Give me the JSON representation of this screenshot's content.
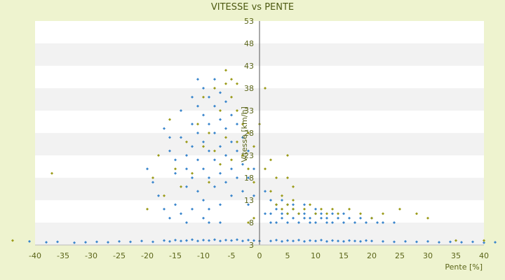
{
  "chart_data": {
    "type": "scatter",
    "title": "VITESSE vs PENTE",
    "xlabel": "Pente [%]",
    "ylabel": "Vitesse [km/h]",
    "xlim": [
      -40,
      40
    ],
    "ylim": [
      3,
      53
    ],
    "x_ticks": [
      "-40",
      "-35",
      "-30",
      "-25",
      "-20",
      "-15",
      "-10",
      "-5",
      "0",
      "5",
      "10",
      "15",
      "20",
      "25",
      "30",
      "35",
      "40"
    ],
    "y_ticks": [
      "3",
      "8",
      "13",
      "18",
      "23",
      "28",
      "33",
      "38",
      "43",
      "48",
      "53"
    ],
    "grid": "horizontal alternating bands",
    "legend": "none",
    "colors": {
      "background": "#eef3cf",
      "band_light": "#ffffff",
      "band_dark": "#f2f2f2",
      "series_blue": "#3a86cc",
      "series_olive": "#9b9b1a",
      "axis": "#555555"
    },
    "series": [
      {
        "color": "#3a86cc",
        "values": [
          [
            -41,
            3.8
          ],
          [
            -38,
            3.6
          ],
          [
            -36,
            3.7
          ],
          [
            -33,
            3.5
          ],
          [
            -31,
            3.6
          ],
          [
            -29,
            3.7
          ],
          [
            -27,
            3.6
          ],
          [
            -25,
            3.8
          ],
          [
            -23,
            3.7
          ],
          [
            -21,
            3.9
          ],
          [
            -19,
            3.7
          ],
          [
            -17,
            4.0
          ],
          [
            -16,
            3.8
          ],
          [
            -15,
            4.1
          ],
          [
            -14,
            3.9
          ],
          [
            -13,
            4.0
          ],
          [
            -12,
            4.2
          ],
          [
            -11,
            3.9
          ],
          [
            -10,
            4.1
          ],
          [
            -9,
            4.0
          ],
          [
            -8,
            4.2
          ],
          [
            -7,
            3.9
          ],
          [
            -6,
            4.1
          ],
          [
            -5,
            4.0
          ],
          [
            -4,
            4.2
          ],
          [
            -3,
            3.9
          ],
          [
            -2,
            4.1
          ],
          [
            -1,
            4.0
          ],
          [
            0,
            3.9
          ],
          [
            2,
            3.9
          ],
          [
            3,
            4.1
          ],
          [
            4,
            3.8
          ],
          [
            5,
            4.0
          ],
          [
            6,
            3.9
          ],
          [
            7,
            4.1
          ],
          [
            8,
            3.8
          ],
          [
            9,
            4.0
          ],
          [
            10,
            3.9
          ],
          [
            11,
            4.1
          ],
          [
            12,
            3.8
          ],
          [
            13,
            4.0
          ],
          [
            14,
            3.9
          ],
          [
            15,
            3.8
          ],
          [
            16,
            4.0
          ],
          [
            17,
            3.9
          ],
          [
            18,
            3.8
          ],
          [
            19,
            4.0
          ],
          [
            20,
            3.9
          ],
          [
            22,
            3.8
          ],
          [
            24,
            3.7
          ],
          [
            26,
            3.8
          ],
          [
            28,
            3.7
          ],
          [
            30,
            3.8
          ],
          [
            32,
            3.6
          ],
          [
            34,
            3.7
          ],
          [
            36,
            3.6
          ],
          [
            38,
            3.7
          ],
          [
            40,
            3.5
          ],
          [
            42,
            3.6
          ],
          [
            -17,
            29
          ],
          [
            -16,
            27
          ],
          [
            -16,
            24
          ],
          [
            -15,
            22
          ],
          [
            -15,
            19
          ],
          [
            -14,
            33
          ],
          [
            -14,
            27
          ],
          [
            -13,
            23
          ],
          [
            -13,
            20
          ],
          [
            -13,
            16
          ],
          [
            -12,
            36
          ],
          [
            -12,
            30
          ],
          [
            -12,
            25
          ],
          [
            -12,
            18
          ],
          [
            -11,
            40
          ],
          [
            -11,
            34
          ],
          [
            -11,
            28
          ],
          [
            -11,
            22
          ],
          [
            -11,
            15
          ],
          [
            -10,
            38
          ],
          [
            -10,
            32
          ],
          [
            -10,
            26
          ],
          [
            -10,
            20
          ],
          [
            -10,
            13
          ],
          [
            -9,
            36
          ],
          [
            -9,
            30
          ],
          [
            -9,
            24
          ],
          [
            -9,
            18
          ],
          [
            -9,
            11
          ],
          [
            -8,
            40
          ],
          [
            -8,
            34
          ],
          [
            -8,
            28
          ],
          [
            -8,
            22
          ],
          [
            -8,
            16
          ],
          [
            -7,
            37
          ],
          [
            -7,
            31
          ],
          [
            -7,
            25
          ],
          [
            -7,
            19
          ],
          [
            -7,
            12
          ],
          [
            -6,
            35
          ],
          [
            -6,
            29
          ],
          [
            -6,
            23
          ],
          [
            -6,
            17
          ],
          [
            -5,
            32
          ],
          [
            -5,
            26
          ],
          [
            -5,
            20
          ],
          [
            -5,
            14
          ],
          [
            -4,
            30
          ],
          [
            -4,
            24
          ],
          [
            -4,
            18
          ],
          [
            -3,
            27
          ],
          [
            -3,
            21
          ],
          [
            -3,
            15
          ],
          [
            -2,
            24
          ],
          [
            -2,
            18
          ],
          [
            -2,
            12
          ],
          [
            -1,
            20
          ],
          [
            -1,
            14
          ],
          [
            -20,
            20
          ],
          [
            -19,
            17
          ],
          [
            -18,
            14
          ],
          [
            -17,
            11
          ],
          [
            -16,
            9
          ],
          [
            -15,
            12
          ],
          [
            -14,
            10
          ],
          [
            -13,
            8
          ],
          [
            -12,
            11
          ],
          [
            -10,
            9
          ],
          [
            -9,
            8
          ],
          [
            -7,
            8
          ],
          [
            1,
            10
          ],
          [
            2,
            8
          ],
          [
            2,
            10
          ],
          [
            3,
            8
          ],
          [
            3,
            11
          ],
          [
            4,
            9
          ],
          [
            4,
            10
          ],
          [
            5,
            8
          ],
          [
            5,
            10
          ],
          [
            6,
            9
          ],
          [
            6,
            11
          ],
          [
            7,
            8
          ],
          [
            7,
            10
          ],
          [
            8,
            9
          ],
          [
            8,
            10
          ],
          [
            9,
            8
          ],
          [
            9,
            9
          ],
          [
            10,
            10
          ],
          [
            10,
            8
          ],
          [
            11,
            9
          ],
          [
            11,
            10
          ],
          [
            12,
            8
          ],
          [
            12,
            9
          ],
          [
            13,
            10
          ],
          [
            13,
            8
          ],
          [
            14,
            9
          ],
          [
            15,
            8
          ],
          [
            15,
            10
          ],
          [
            16,
            9
          ],
          [
            17,
            8
          ],
          [
            18,
            9
          ],
          [
            19,
            8
          ],
          [
            20,
            9
          ],
          [
            21,
            8
          ],
          [
            22,
            8
          ],
          [
            24,
            8
          ],
          [
            1,
            15
          ],
          [
            2,
            13
          ],
          [
            3,
            12
          ],
          [
            4,
            13
          ],
          [
            5,
            12
          ],
          [
            6,
            12
          ],
          [
            8,
            12
          ],
          [
            10,
            11
          ]
        ]
      },
      {
        "color": "#9b9b1a",
        "values": [
          [
            -44,
            4.0
          ],
          [
            -37,
            19
          ],
          [
            -20,
            11
          ],
          [
            -19,
            18
          ],
          [
            -18,
            23
          ],
          [
            -17,
            14
          ],
          [
            -16,
            31
          ],
          [
            -15,
            20
          ],
          [
            -14,
            16
          ],
          [
            -13,
            26
          ],
          [
            -12,
            19
          ],
          [
            -11,
            30
          ],
          [
            -10,
            25
          ],
          [
            -10,
            36
          ],
          [
            -9,
            17
          ],
          [
            -9,
            28
          ],
          [
            -8,
            24
          ],
          [
            -8,
            38
          ],
          [
            -7,
            33
          ],
          [
            -7,
            21
          ],
          [
            -6,
            39
          ],
          [
            -6,
            42
          ],
          [
            -6,
            27
          ],
          [
            -5,
            40
          ],
          [
            -5,
            36
          ],
          [
            -5,
            22
          ],
          [
            -4,
            33
          ],
          [
            -4,
            26
          ],
          [
            -4,
            39
          ],
          [
            -3,
            30
          ],
          [
            -3,
            23
          ],
          [
            -2,
            28
          ],
          [
            -2,
            20
          ],
          [
            -1,
            25
          ],
          [
            -1,
            17
          ],
          [
            0,
            30
          ],
          [
            1,
            38
          ],
          [
            1,
            20
          ],
          [
            2,
            15
          ],
          [
            2,
            22
          ],
          [
            3,
            12
          ],
          [
            3,
            18
          ],
          [
            4,
            11
          ],
          [
            4,
            14
          ],
          [
            5,
            10
          ],
          [
            5,
            12
          ],
          [
            6,
            11
          ],
          [
            6,
            13
          ],
          [
            7,
            10
          ],
          [
            8,
            11
          ],
          [
            9,
            12
          ],
          [
            10,
            10
          ],
          [
            11,
            11
          ],
          [
            12,
            10
          ],
          [
            13,
            11
          ],
          [
            14,
            10
          ],
          [
            16,
            11
          ],
          [
            18,
            10
          ],
          [
            20,
            9
          ],
          [
            22,
            10
          ],
          [
            25,
            11
          ],
          [
            28,
            10
          ],
          [
            30,
            9
          ],
          [
            35,
            4.0
          ],
          [
            40,
            4.0
          ],
          [
            5,
            23
          ],
          [
            5,
            18
          ],
          [
            6,
            16
          ],
          [
            -2,
            8
          ],
          [
            -1,
            9
          ]
        ]
      }
    ]
  }
}
